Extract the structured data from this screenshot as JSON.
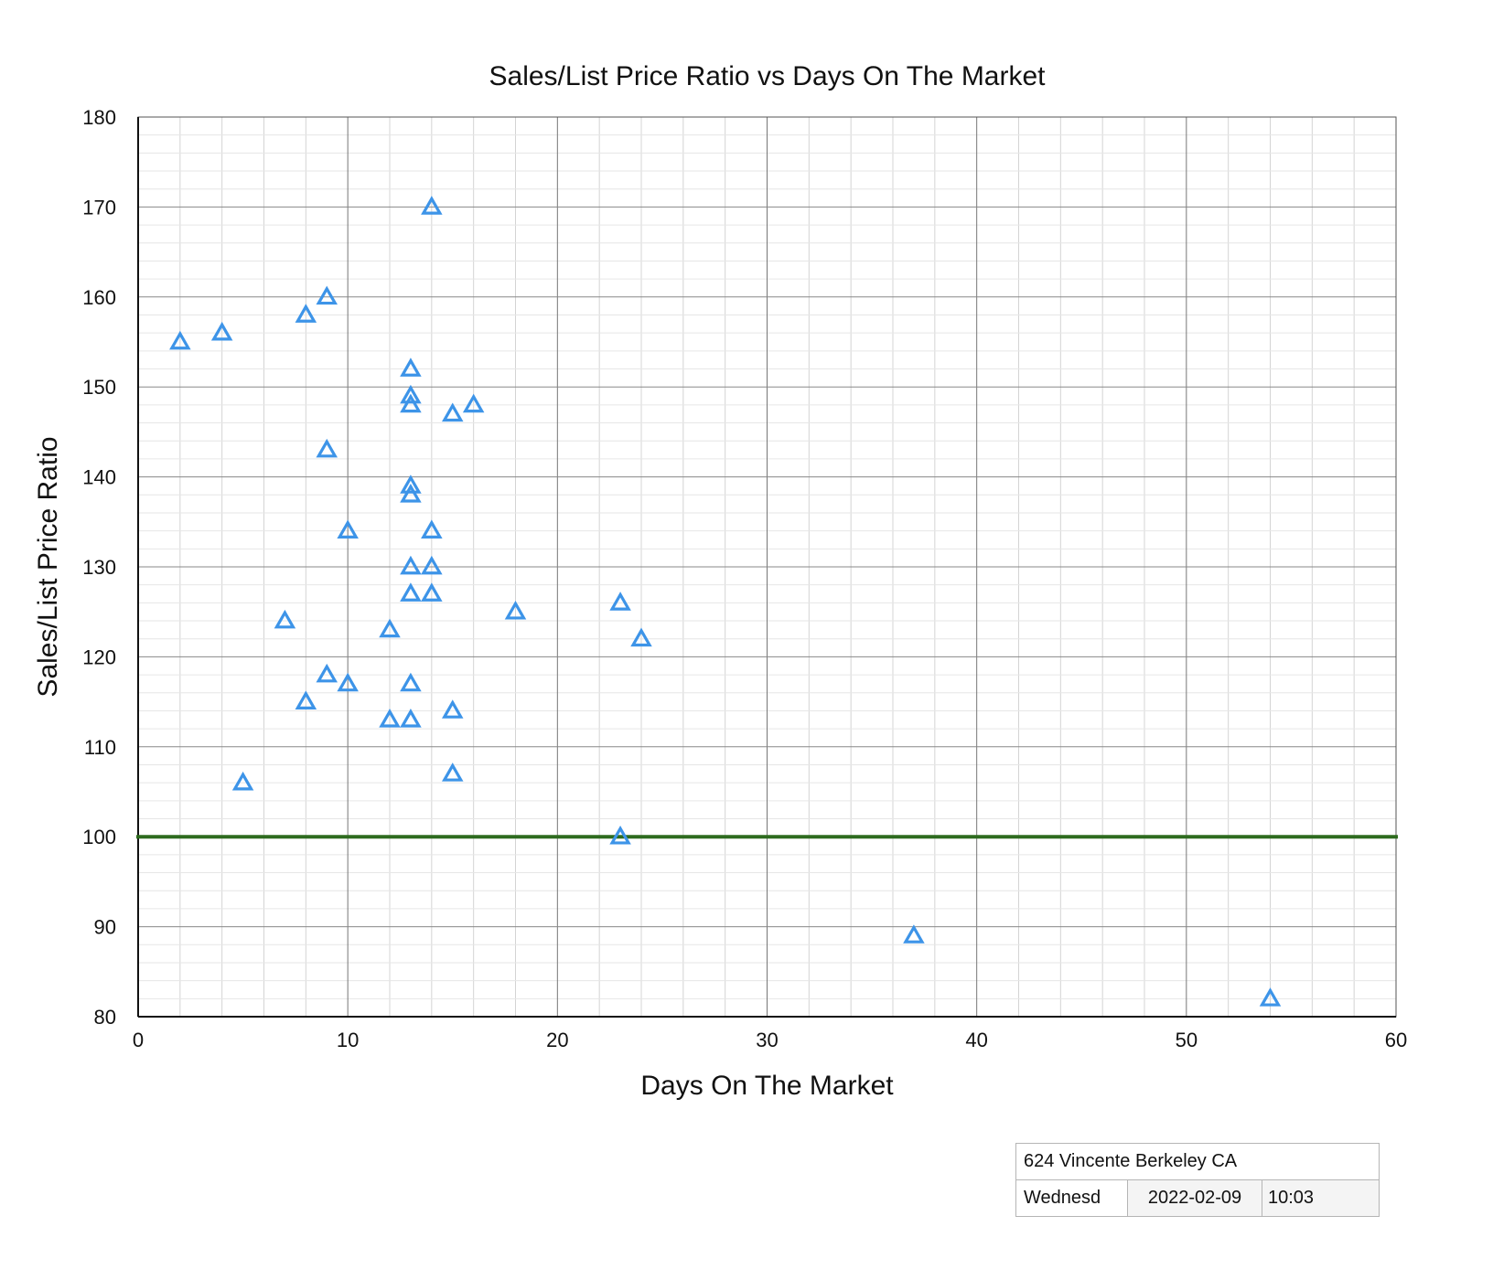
{
  "chart_data": {
    "type": "scatter",
    "title": "Sales/List Price Ratio vs Days On The Market",
    "xlabel": "Days On The Market",
    "ylabel": "Sales/List Price Ratio",
    "xlim": [
      0,
      60
    ],
    "ylim": [
      80,
      180
    ],
    "x_ticks": [
      0,
      10,
      20,
      30,
      40,
      50,
      60
    ],
    "y_ticks": [
      80,
      90,
      100,
      110,
      120,
      130,
      140,
      150,
      160,
      170,
      180
    ],
    "grid": true,
    "marker": "triangle-outline",
    "marker_color": "#3d94e8",
    "reference_line": {
      "y": 100,
      "color": "#2e6b1f"
    },
    "points": [
      {
        "x": 2,
        "y": 155
      },
      {
        "x": 4,
        "y": 156
      },
      {
        "x": 5,
        "y": 106
      },
      {
        "x": 7,
        "y": 124
      },
      {
        "x": 8,
        "y": 158
      },
      {
        "x": 8,
        "y": 115
      },
      {
        "x": 9,
        "y": 160
      },
      {
        "x": 9,
        "y": 143
      },
      {
        "x": 9,
        "y": 118
      },
      {
        "x": 10,
        "y": 134
      },
      {
        "x": 10,
        "y": 117
      },
      {
        "x": 12,
        "y": 123
      },
      {
        "x": 12,
        "y": 113
      },
      {
        "x": 13,
        "y": 152
      },
      {
        "x": 13,
        "y": 149
      },
      {
        "x": 13,
        "y": 148
      },
      {
        "x": 13,
        "y": 139
      },
      {
        "x": 13,
        "y": 138
      },
      {
        "x": 13,
        "y": 130
      },
      {
        "x": 13,
        "y": 127
      },
      {
        "x": 13,
        "y": 117
      },
      {
        "x": 13,
        "y": 113
      },
      {
        "x": 14,
        "y": 170
      },
      {
        "x": 14,
        "y": 134
      },
      {
        "x": 14,
        "y": 130
      },
      {
        "x": 14,
        "y": 127
      },
      {
        "x": 15,
        "y": 147
      },
      {
        "x": 15,
        "y": 114
      },
      {
        "x": 15,
        "y": 107
      },
      {
        "x": 16,
        "y": 148
      },
      {
        "x": 18,
        "y": 125
      },
      {
        "x": 23,
        "y": 126
      },
      {
        "x": 23,
        "y": 100
      },
      {
        "x": 24,
        "y": 122
      },
      {
        "x": 37,
        "y": 89
      },
      {
        "x": 54,
        "y": 82
      }
    ]
  },
  "info_box": {
    "address": "624 Vincente Berkeley CA",
    "day": "Wednesd",
    "date": "2022-02-09",
    "time": "10:03"
  }
}
